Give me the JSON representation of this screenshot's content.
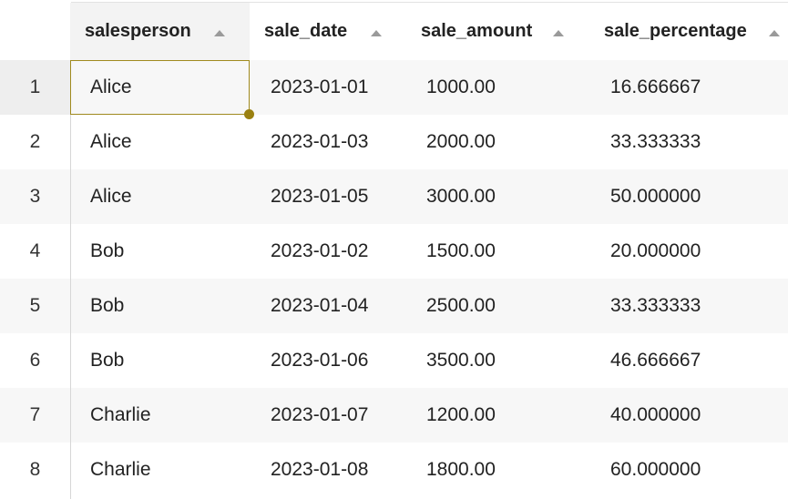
{
  "table": {
    "columns": [
      {
        "key": "salesperson",
        "label": "salesperson"
      },
      {
        "key": "sale_date",
        "label": "sale_date"
      },
      {
        "key": "sale_amount",
        "label": "sale_amount"
      },
      {
        "key": "sale_percentage",
        "label": "sale_percentage"
      }
    ],
    "rows": [
      {
        "index": "1",
        "salesperson": "Alice",
        "sale_date": "2023-01-01",
        "sale_amount": "1000.00",
        "sale_percentage": "16.666667"
      },
      {
        "index": "2",
        "salesperson": "Alice",
        "sale_date": "2023-01-03",
        "sale_amount": "2000.00",
        "sale_percentage": "33.333333"
      },
      {
        "index": "3",
        "salesperson": "Alice",
        "sale_date": "2023-01-05",
        "sale_amount": "3000.00",
        "sale_percentage": "50.000000"
      },
      {
        "index": "4",
        "salesperson": "Bob",
        "sale_date": "2023-01-02",
        "sale_amount": "1500.00",
        "sale_percentage": "20.000000"
      },
      {
        "index": "5",
        "salesperson": "Bob",
        "sale_date": "2023-01-04",
        "sale_amount": "2500.00",
        "sale_percentage": "33.333333"
      },
      {
        "index": "6",
        "salesperson": "Bob",
        "sale_date": "2023-01-06",
        "sale_amount": "3500.00",
        "sale_percentage": "46.666667"
      },
      {
        "index": "7",
        "salesperson": "Charlie",
        "sale_date": "2023-01-07",
        "sale_amount": "1200.00",
        "sale_percentage": "40.000000"
      },
      {
        "index": "8",
        "salesperson": "Charlie",
        "sale_date": "2023-01-08",
        "sale_amount": "1800.00",
        "sale_percentage": "60.000000"
      }
    ]
  },
  "icons": {
    "sort": "sort-ascending-icon"
  },
  "colors": {
    "selection_border": "#a08a1e",
    "fill_handle": "#9a8010",
    "stripe": "#f7f7f7",
    "active_header": "#f3f3f3"
  }
}
